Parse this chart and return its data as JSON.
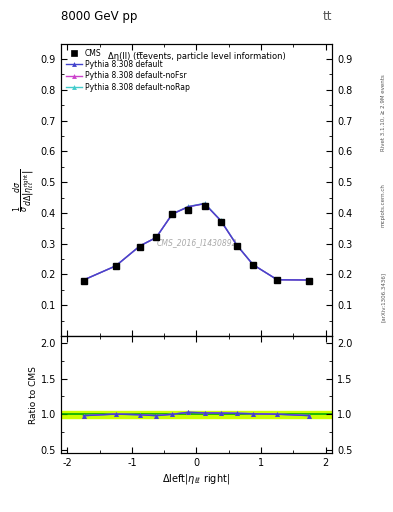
{
  "title_top": "8000 GeV pp",
  "title_right": "tt",
  "annotation": "Δη(ll) (tt̅events, particle level information)",
  "watermark": "CMS_2016_I1430892",
  "right_label_top": "Rivet 3.1.10, ≥ 2.9M events",
  "right_label_bottom": "[arXiv:1306.3436]",
  "right_label_url": "mcplots.cern.ch",
  "ylabel_ratio": "Ratio to CMS",
  "xlim": [
    -2.1,
    2.1
  ],
  "ylim_main": [
    0.0,
    0.95
  ],
  "ylim_ratio": [
    0.45,
    2.1
  ],
  "yticks_main": [
    0.1,
    0.2,
    0.3,
    0.4,
    0.5,
    0.6,
    0.7,
    0.8,
    0.9
  ],
  "yticks_ratio": [
    0.5,
    1.0,
    1.5,
    2.0
  ],
  "xticks": [
    -2,
    -1,
    0,
    1,
    2
  ],
  "cms_x": [
    -1.75,
    -1.25,
    -0.875,
    -0.625,
    -0.375,
    -0.125,
    0.125,
    0.375,
    0.625,
    0.875,
    1.25,
    1.75
  ],
  "cms_y": [
    0.178,
    0.228,
    0.29,
    0.323,
    0.397,
    0.41,
    0.423,
    0.37,
    0.292,
    0.231,
    0.183,
    0.178
  ],
  "pythia_default_x": [
    -1.75,
    -1.25,
    -0.875,
    -0.625,
    -0.375,
    -0.125,
    0.125,
    0.375,
    0.625,
    0.875,
    1.25,
    1.75
  ],
  "pythia_default_y": [
    0.182,
    0.228,
    0.293,
    0.32,
    0.396,
    0.42,
    0.43,
    0.375,
    0.295,
    0.232,
    0.183,
    0.182
  ],
  "pythia_nofsr_x": [
    -1.75,
    -1.25,
    -0.875,
    -0.625,
    -0.375,
    -0.125,
    0.125,
    0.375,
    0.625,
    0.875,
    1.25,
    1.75
  ],
  "pythia_nofsr_y": [
    0.182,
    0.228,
    0.293,
    0.32,
    0.397,
    0.42,
    0.43,
    0.375,
    0.295,
    0.232,
    0.183,
    0.182
  ],
  "pythia_norap_x": [
    -1.75,
    -1.25,
    -0.875,
    -0.625,
    -0.375,
    -0.125,
    0.125,
    0.375,
    0.625,
    0.875,
    1.25,
    1.75
  ],
  "pythia_norap_y": [
    0.182,
    0.228,
    0.293,
    0.32,
    0.397,
    0.421,
    0.431,
    0.376,
    0.296,
    0.232,
    0.183,
    0.182
  ],
  "color_default": "#4444cc",
  "color_nofsr": "#cc44cc",
  "color_norap": "#44cccc",
  "color_cms": "#000000",
  "color_band": "#ccff00",
  "color_line1": "#00aa00",
  "ratio_default_y": [
    0.978,
    1.0,
    0.99,
    0.978,
    0.997,
    1.024,
    1.016,
    1.014,
    1.01,
    1.004,
    0.998,
    0.978
  ],
  "ratio_nofsr_y": [
    0.978,
    1.002,
    0.992,
    0.98,
    0.999,
    1.026,
    1.018,
    1.016,
    1.012,
    1.006,
    1.0,
    0.98
  ],
  "ratio_norap_y": [
    0.978,
    1.0,
    0.99,
    0.978,
    0.999,
    1.026,
    1.02,
    1.018,
    1.014,
    1.006,
    0.999,
    0.979
  ]
}
